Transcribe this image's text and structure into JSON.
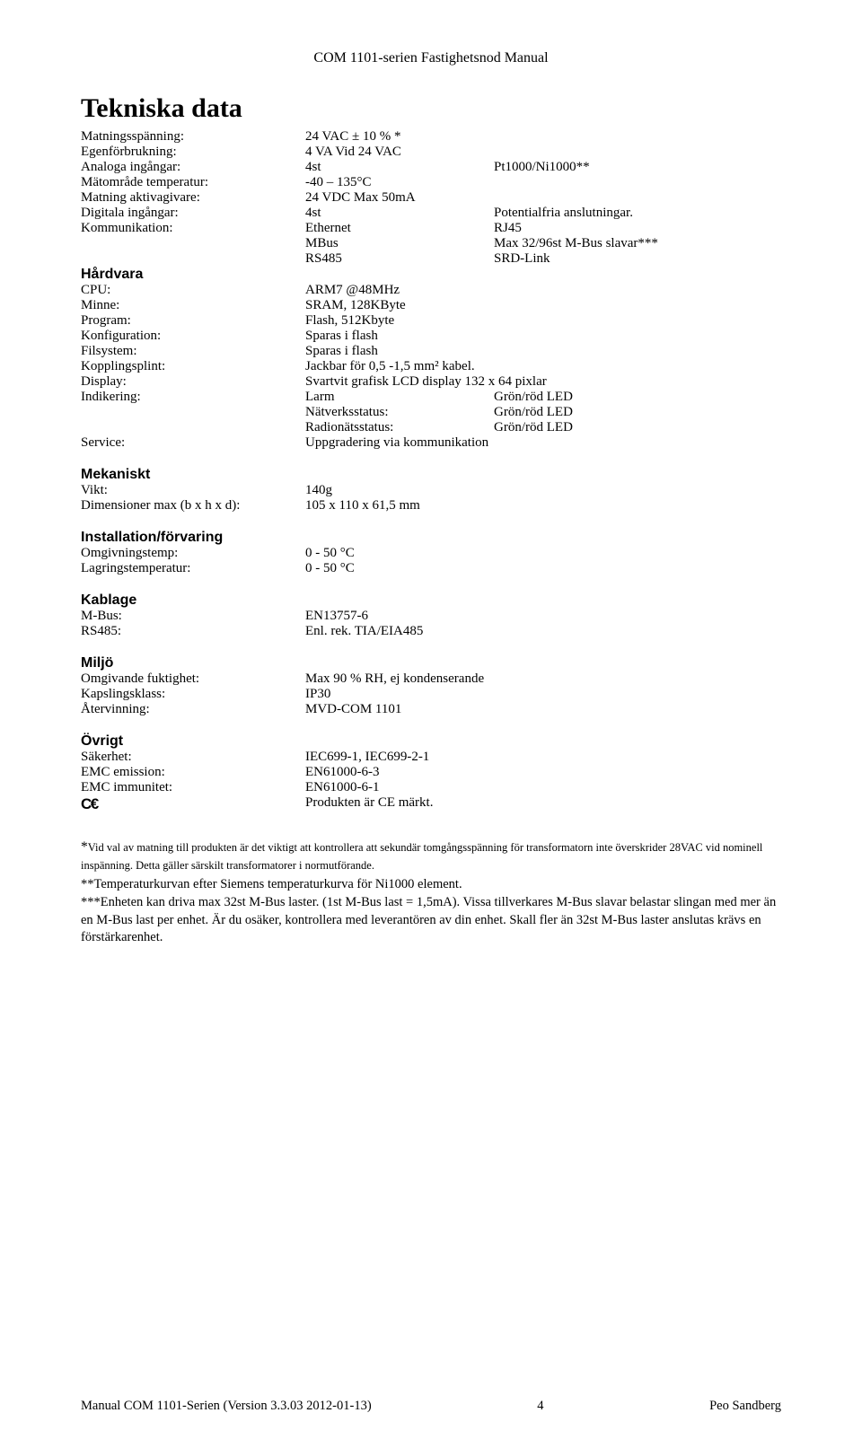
{
  "header": "COM 1101-serien Fastighetsnod Manual",
  "title": "Tekniska data",
  "r": {
    "matn": {
      "l": "Matningsspänning:",
      "v": "24 VAC ± 10 % *"
    },
    "egen": {
      "l": "Egenförbrukning:",
      "v": "4 VA Vid 24 VAC"
    },
    "analog": {
      "l": "Analoga ingångar:",
      "v": "4st",
      "e": "Pt1000/Ni1000**"
    },
    "matomr": {
      "l": "Mätområde temperatur:",
      "v": "-40 – 135°C"
    },
    "matakt": {
      "l": "Matning aktivagivare:",
      "v": "24 VDC Max 50mA"
    },
    "digin": {
      "l": "Digitala ingångar:",
      "v": "4st",
      "e": "Potentialfria anslutningar."
    },
    "komm": {
      "l": "Kommunikation:",
      "v": "Ethernet",
      "e": "RJ45"
    },
    "komm2": {
      "v": "MBus",
      "e": "Max 32/96st M-Bus slavar***"
    },
    "komm3": {
      "v": "RS485",
      "e": "SRD-Link"
    },
    "cpu": {
      "l": "CPU:",
      "v": "ARM7 @48MHz"
    },
    "minne": {
      "l": "Minne:",
      "v": "SRAM, 128KByte"
    },
    "prog": {
      "l": "Program:",
      "v": "Flash, 512Kbyte"
    },
    "konf": {
      "l": "Konfiguration:",
      "v": "Sparas i flash"
    },
    "fils": {
      "l": "Filsystem:",
      "v": "Sparas i flash"
    },
    "kopp": {
      "l": "Kopplingsplint:",
      "v": "Jackbar för 0,5 -1,5 mm² kabel."
    },
    "disp": {
      "l": "Display:",
      "v": "Svartvit grafisk LCD display 132 x 64 pixlar"
    },
    "indik": {
      "l": "Indikering:",
      "v": "Larm",
      "e": "Grön/röd LED"
    },
    "indik2": {
      "v": "Nätverksstatus:",
      "e": "Grön/röd LED"
    },
    "indik3": {
      "v": "Radionätsstatus:",
      "e": "Grön/röd LED"
    },
    "serv": {
      "l": "Service:",
      "v": "Uppgradering via kommunikation"
    },
    "vikt": {
      "l": "Vikt:",
      "v": "140g"
    },
    "dim": {
      "l": "Dimensioner max (b x h x d):",
      "v": "105 x 110 x 61,5 mm"
    },
    "omgt": {
      "l": "Omgivningstemp:",
      "v": "0 - 50 °C"
    },
    "lagr": {
      "l": "Lagringstemperatur:",
      "v": "0 - 50 °C"
    },
    "mbus": {
      "l": "M-Bus:",
      "v": "EN13757-6"
    },
    "rs485": {
      "l": "RS485:",
      "v": "Enl. rek. TIA/EIA485"
    },
    "omgf": {
      "l": "Omgivande fuktighet:",
      "v": "Max 90 % RH, ej kondenserande"
    },
    "kaps": {
      "l": "Kapslingsklass:",
      "v": "IP30"
    },
    "ater": {
      "l": "Återvinning:",
      "v": "MVD-COM 1101"
    },
    "sak": {
      "l": "Säkerhet:",
      "v": "IEC699-1, IEC699-2-1"
    },
    "emce": {
      "l": "EMC emission:",
      "v": "EN61000-6-3"
    },
    "emci": {
      "l": "EMC immunitet:",
      "v": "EN61000-6-1"
    },
    "ce": {
      "v": "Produkten är CE märkt."
    }
  },
  "sections": {
    "hardvara": "Hårdvara",
    "mekaniskt": "Mekaniskt",
    "install": "Installation/förvaring",
    "kablage": "Kablage",
    "miljo": "Miljö",
    "ovrigt": "Övrigt"
  },
  "foot": {
    "f1a": "*",
    "f1b": "Vid val av matning till produkten är det viktigt att kontrollera att sekundär tomgångsspänning för transformatorn inte överskrider 28VAC vid nominell inspänning. Detta gäller särskilt transformatorer i normutförande.",
    "f2": "**Temperaturkurvan efter Siemens temperaturkurva för Ni1000 element.",
    "f3": "***Enheten kan driva max 32st M-Bus laster. (1st M-Bus last = 1,5mA). Vissa tillverkares M-Bus slavar belastar slingan med mer än en M-Bus last per enhet. Är du osäker, kontrollera med leverantören av din enhet. Skall fler än 32st M-Bus laster anslutas krävs en förstärkarenhet."
  },
  "footer": {
    "left": "Manual COM 1101-Serien (Version 3.3.03 2012-01-13)",
    "mid": "4",
    "right": "Peo Sandberg"
  }
}
